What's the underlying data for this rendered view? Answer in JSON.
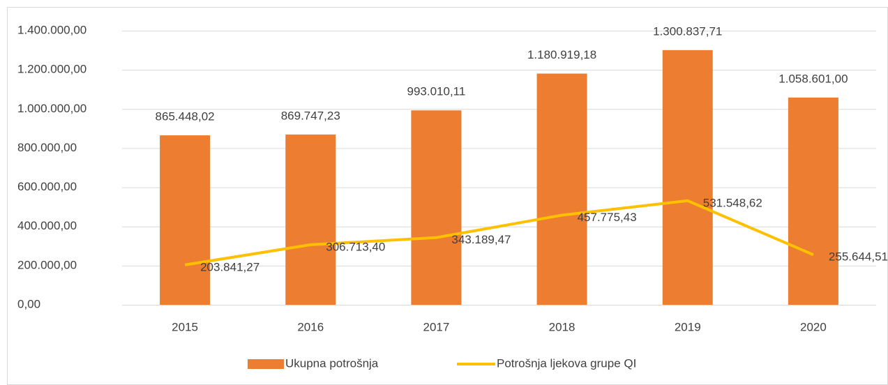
{
  "chart_data": {
    "type": "bar",
    "categories": [
      "2015",
      "2016",
      "2017",
      "2018",
      "2019",
      "2020"
    ],
    "series": [
      {
        "name": "Ukupna potrošnja",
        "type": "bar",
        "color": "#ed7d31",
        "values": [
          865448.02,
          869747.23,
          993010.11,
          1180919.18,
          1300837.71,
          1058601.0
        ],
        "value_labels": [
          "865.448,02",
          "869.747,23",
          "993.010,11",
          "1.180.919,18",
          "1.300.837,71",
          "1.058.601,00"
        ]
      },
      {
        "name": "Potrošnja ljekova grupe QI",
        "type": "line",
        "color": "#ffc000",
        "values": [
          203841.27,
          306713.4,
          343189.47,
          457775.43,
          531548.62,
          255644.51
        ],
        "value_labels": [
          "203.841,27",
          "306.713,40",
          "343.189,47",
          "457.775,43",
          "531.548,62",
          "255.644,51"
        ]
      }
    ],
    "ylim": [
      0,
      1400000
    ],
    "yticks": [
      {
        "value": 0,
        "label": "0,00"
      },
      {
        "value": 200000,
        "label": "200.000,00"
      },
      {
        "value": 400000,
        "label": "400.000,00"
      },
      {
        "value": 600000,
        "label": "600.000,00"
      },
      {
        "value": 800000,
        "label": "800.000,00"
      },
      {
        "value": 1000000,
        "label": "1.000.000,00"
      },
      {
        "value": 1200000,
        "label": "1.200.000,00"
      },
      {
        "value": 1400000,
        "label": "1.400.000,00"
      }
    ],
    "grid": true,
    "legend": "bottom"
  }
}
